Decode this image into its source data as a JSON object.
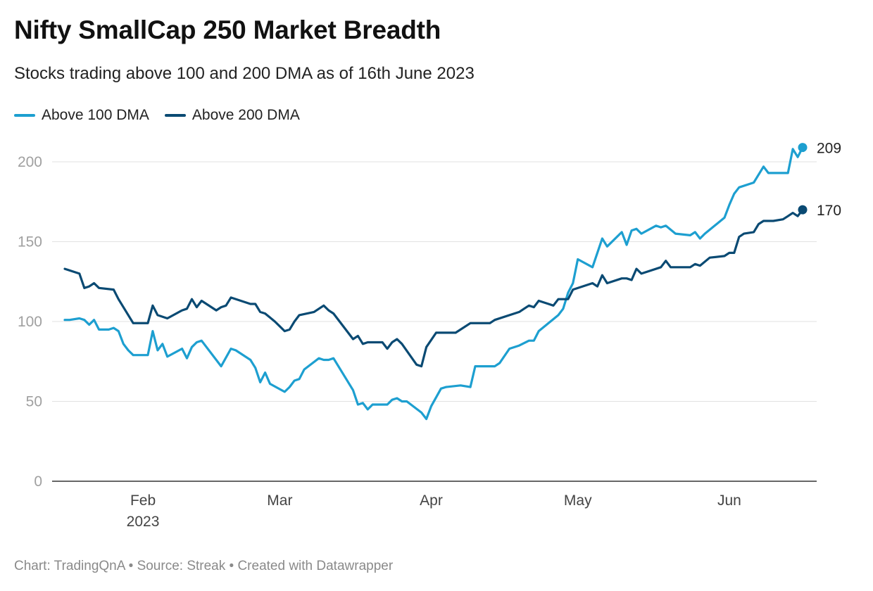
{
  "header": {
    "title": "Nifty SmallCap 250 Market Breadth",
    "subtitle": "Stocks trading above 100 and 200 DMA as of 16th June 2023"
  },
  "footer": {
    "credit": "Chart: TradingQnA • Source: Streak • Created with Datawrapper"
  },
  "colors": {
    "above_100": "#1d9fd0",
    "above_200": "#0a4a73",
    "grid": "#e2e2e2",
    "axis": "#333333"
  },
  "chart_data": {
    "type": "line",
    "title": "Nifty SmallCap 250 Market Breadth",
    "subtitle": "Stocks trading above 100 and 200 DMA as of 16th June 2023",
    "xlabel": "",
    "ylabel": "",
    "x_range": [
      "2023-01-16",
      "2023-06-16"
    ],
    "ylim": [
      0,
      209
    ],
    "yticks": [
      0,
      50,
      100,
      150,
      200
    ],
    "xticks": [
      {
        "date": "2023-02-01",
        "label": "Feb",
        "sublabel": "2023"
      },
      {
        "date": "2023-03-01",
        "label": "Mar",
        "sublabel": ""
      },
      {
        "date": "2023-04-01",
        "label": "Apr",
        "sublabel": ""
      },
      {
        "date": "2023-05-01",
        "label": "May",
        "sublabel": ""
      },
      {
        "date": "2023-06-01",
        "label": "Jun",
        "sublabel": ""
      }
    ],
    "grid": true,
    "legend_position": "top-left",
    "series": [
      {
        "name": "Above 100 DMA",
        "color": "#1d9fd0",
        "end_label": "209",
        "points": [
          [
            "2023-01-16",
            101
          ],
          [
            "2023-01-17",
            101
          ],
          [
            "2023-01-19",
            102
          ],
          [
            "2023-01-20",
            101
          ],
          [
            "2023-01-21",
            98
          ],
          [
            "2023-01-22",
            101
          ],
          [
            "2023-01-23",
            95
          ],
          [
            "2023-01-25",
            95
          ],
          [
            "2023-01-26",
            96
          ],
          [
            "2023-01-27",
            94
          ],
          [
            "2023-01-28",
            86
          ],
          [
            "2023-01-29",
            82
          ],
          [
            "2023-01-30",
            79
          ],
          [
            "2023-01-31",
            79
          ],
          [
            "2023-02-01",
            79
          ],
          [
            "2023-02-02",
            79
          ],
          [
            "2023-02-03",
            94
          ],
          [
            "2023-02-04",
            82
          ],
          [
            "2023-02-05",
            86
          ],
          [
            "2023-02-06",
            78
          ],
          [
            "2023-02-09",
            83
          ],
          [
            "2023-02-10",
            77
          ],
          [
            "2023-02-11",
            84
          ],
          [
            "2023-02-12",
            87
          ],
          [
            "2023-02-13",
            88
          ],
          [
            "2023-02-17",
            72
          ],
          [
            "2023-02-19",
            83
          ],
          [
            "2023-02-20",
            82
          ],
          [
            "2023-02-23",
            76
          ],
          [
            "2023-02-24",
            71
          ],
          [
            "2023-02-25",
            62
          ],
          [
            "2023-02-26",
            68
          ],
          [
            "2023-02-27",
            61
          ],
          [
            "2023-03-02",
            56
          ],
          [
            "2023-03-03",
            59
          ],
          [
            "2023-03-04",
            63
          ],
          [
            "2023-03-05",
            64
          ],
          [
            "2023-03-06",
            70
          ],
          [
            "2023-03-09",
            77
          ],
          [
            "2023-03-10",
            76
          ],
          [
            "2023-03-11",
            76
          ],
          [
            "2023-03-12",
            77
          ],
          [
            "2023-03-16",
            57
          ],
          [
            "2023-03-17",
            48
          ],
          [
            "2023-03-18",
            49
          ],
          [
            "2023-03-19",
            45
          ],
          [
            "2023-03-20",
            48
          ],
          [
            "2023-03-23",
            48
          ],
          [
            "2023-03-24",
            51
          ],
          [
            "2023-03-25",
            52
          ],
          [
            "2023-03-26",
            50
          ],
          [
            "2023-03-27",
            50
          ],
          [
            "2023-03-30",
            43
          ],
          [
            "2023-03-31",
            39
          ],
          [
            "2023-04-01",
            47
          ],
          [
            "2023-04-03",
            58
          ],
          [
            "2023-04-04",
            59
          ],
          [
            "2023-04-07",
            60
          ],
          [
            "2023-04-09",
            59
          ],
          [
            "2023-04-10",
            72
          ],
          [
            "2023-04-14",
            72
          ],
          [
            "2023-04-15",
            74
          ],
          [
            "2023-04-17",
            83
          ],
          [
            "2023-04-19",
            85
          ],
          [
            "2023-04-21",
            88
          ],
          [
            "2023-04-22",
            88
          ],
          [
            "2023-04-23",
            94
          ],
          [
            "2023-04-27",
            104
          ],
          [
            "2023-04-28",
            108
          ],
          [
            "2023-04-29",
            118
          ],
          [
            "2023-04-30",
            124
          ],
          [
            "2023-05-01",
            139
          ],
          [
            "2023-05-04",
            134
          ],
          [
            "2023-05-06",
            152
          ],
          [
            "2023-05-07",
            147
          ],
          [
            "2023-05-10",
            156
          ],
          [
            "2023-05-11",
            148
          ],
          [
            "2023-05-12",
            157
          ],
          [
            "2023-05-13",
            158
          ],
          [
            "2023-05-14",
            155
          ],
          [
            "2023-05-17",
            160
          ],
          [
            "2023-05-18",
            159
          ],
          [
            "2023-05-19",
            160
          ],
          [
            "2023-05-21",
            155
          ],
          [
            "2023-05-24",
            154
          ],
          [
            "2023-05-25",
            156
          ],
          [
            "2023-05-26",
            152
          ],
          [
            "2023-05-27",
            155
          ],
          [
            "2023-05-31",
            165
          ],
          [
            "2023-06-01",
            173
          ],
          [
            "2023-06-02",
            180
          ],
          [
            "2023-06-03",
            184
          ],
          [
            "2023-06-06",
            187
          ],
          [
            "2023-06-08",
            197
          ],
          [
            "2023-06-09",
            193
          ],
          [
            "2023-06-13",
            193
          ],
          [
            "2023-06-14",
            208
          ],
          [
            "2023-06-15",
            203
          ],
          [
            "2023-06-16",
            209
          ]
        ]
      },
      {
        "name": "Above 200 DMA",
        "color": "#0a4a73",
        "end_label": "170",
        "points": [
          [
            "2023-01-16",
            133
          ],
          [
            "2023-01-19",
            130
          ],
          [
            "2023-01-20",
            121
          ],
          [
            "2023-01-21",
            122
          ],
          [
            "2023-01-22",
            124
          ],
          [
            "2023-01-23",
            121
          ],
          [
            "2023-01-26",
            120
          ],
          [
            "2023-01-27",
            114
          ],
          [
            "2023-01-30",
            99
          ],
          [
            "2023-02-02",
            99
          ],
          [
            "2023-02-03",
            110
          ],
          [
            "2023-02-04",
            104
          ],
          [
            "2023-02-06",
            102
          ],
          [
            "2023-02-09",
            107
          ],
          [
            "2023-02-10",
            108
          ],
          [
            "2023-02-11",
            114
          ],
          [
            "2023-02-12",
            109
          ],
          [
            "2023-02-13",
            113
          ],
          [
            "2023-02-16",
            107
          ],
          [
            "2023-02-17",
            109
          ],
          [
            "2023-02-18",
            110
          ],
          [
            "2023-02-19",
            115
          ],
          [
            "2023-02-23",
            111
          ],
          [
            "2023-02-24",
            111
          ],
          [
            "2023-02-25",
            106
          ],
          [
            "2023-02-26",
            105
          ],
          [
            "2023-02-28",
            100
          ],
          [
            "2023-03-01",
            97
          ],
          [
            "2023-03-02",
            94
          ],
          [
            "2023-03-03",
            95
          ],
          [
            "2023-03-04",
            100
          ],
          [
            "2023-03-05",
            104
          ],
          [
            "2023-03-08",
            106
          ],
          [
            "2023-03-10",
            110
          ],
          [
            "2023-03-11",
            107
          ],
          [
            "2023-03-12",
            105
          ],
          [
            "2023-03-16",
            89
          ],
          [
            "2023-03-17",
            91
          ],
          [
            "2023-03-18",
            86
          ],
          [
            "2023-03-19",
            87
          ],
          [
            "2023-03-22",
            87
          ],
          [
            "2023-03-23",
            83
          ],
          [
            "2023-03-24",
            87
          ],
          [
            "2023-03-25",
            89
          ],
          [
            "2023-03-26",
            86
          ],
          [
            "2023-03-29",
            73
          ],
          [
            "2023-03-30",
            72
          ],
          [
            "2023-03-31",
            84
          ],
          [
            "2023-04-02",
            93
          ],
          [
            "2023-04-06",
            93
          ],
          [
            "2023-04-09",
            99
          ],
          [
            "2023-04-13",
            99
          ],
          [
            "2023-04-14",
            101
          ],
          [
            "2023-04-19",
            106
          ],
          [
            "2023-04-20",
            108
          ],
          [
            "2023-04-21",
            110
          ],
          [
            "2023-04-22",
            109
          ],
          [
            "2023-04-23",
            113
          ],
          [
            "2023-04-25",
            111
          ],
          [
            "2023-04-26",
            110
          ],
          [
            "2023-04-27",
            114
          ],
          [
            "2023-04-29",
            114
          ],
          [
            "2023-04-30",
            120
          ],
          [
            "2023-05-04",
            124
          ],
          [
            "2023-05-05",
            122
          ],
          [
            "2023-05-06",
            129
          ],
          [
            "2023-05-07",
            124
          ],
          [
            "2023-05-10",
            127
          ],
          [
            "2023-05-11",
            127
          ],
          [
            "2023-05-12",
            126
          ],
          [
            "2023-05-13",
            133
          ],
          [
            "2023-05-14",
            130
          ],
          [
            "2023-05-18",
            134
          ],
          [
            "2023-05-19",
            138
          ],
          [
            "2023-05-20",
            134
          ],
          [
            "2023-05-24",
            134
          ],
          [
            "2023-05-25",
            136
          ],
          [
            "2023-05-26",
            135
          ],
          [
            "2023-05-28",
            140
          ],
          [
            "2023-05-31",
            141
          ],
          [
            "2023-06-01",
            143
          ],
          [
            "2023-06-02",
            143
          ],
          [
            "2023-06-03",
            153
          ],
          [
            "2023-06-04",
            155
          ],
          [
            "2023-06-06",
            156
          ],
          [
            "2023-06-07",
            161
          ],
          [
            "2023-06-08",
            163
          ],
          [
            "2023-06-10",
            163
          ],
          [
            "2023-06-12",
            164
          ],
          [
            "2023-06-13",
            166
          ],
          [
            "2023-06-14",
            168
          ],
          [
            "2023-06-15",
            166
          ],
          [
            "2023-06-16",
            170
          ]
        ]
      }
    ]
  }
}
